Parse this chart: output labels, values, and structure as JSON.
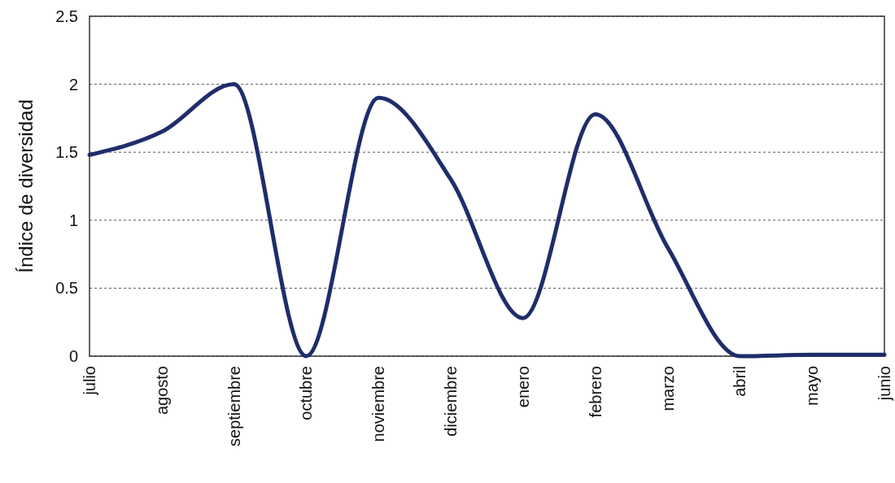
{
  "chart_data": {
    "type": "line",
    "ylabel": "Índice de diversidad",
    "categories": [
      "julio",
      "agosto",
      "septiembre",
      "octubre",
      "noviembre",
      "diciembre",
      "enero",
      "febrero",
      "marzo",
      "abril",
      "mayo",
      "junio"
    ],
    "series": [
      {
        "color": "#1f2d6b",
        "values": [
          1.48,
          1.65,
          2.0,
          0,
          1.9,
          1.3,
          0.28,
          1.78,
          0.8,
          0,
          0.01,
          0.01
        ]
      }
    ],
    "ylim": [
      0,
      2.5
    ],
    "yticks": [
      0,
      0.5,
      1,
      1.5,
      2,
      2.5
    ],
    "grid": "y",
    "marker": "none",
    "line_style": "solid"
  }
}
